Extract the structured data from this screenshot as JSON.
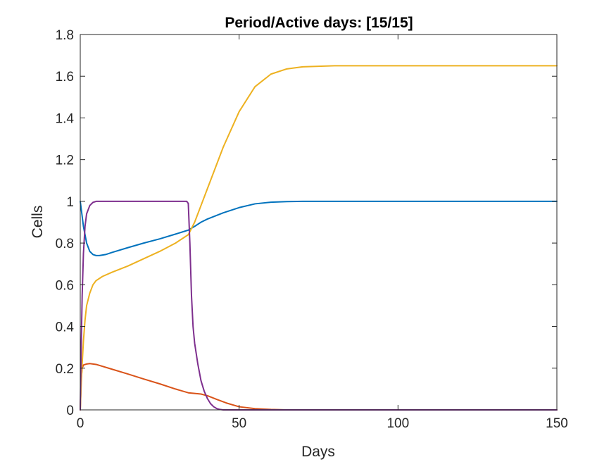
{
  "chart_data": {
    "type": "line",
    "title": "Period/Active days: [15/15]",
    "xlabel": "Days",
    "ylabel": "Cells",
    "xlim": [
      0,
      150
    ],
    "ylim": [
      0,
      1.8
    ],
    "xticks": [
      0,
      50,
      100,
      150
    ],
    "xtick_labels": [
      "0",
      "50",
      "100",
      "150"
    ],
    "yticks": [
      0,
      0.2,
      0.4,
      0.6,
      0.8,
      1,
      1.2,
      1.4,
      1.6,
      1.8
    ],
    "ytick_labels": [
      "0",
      "0.2",
      "0.4",
      "0.6",
      "0.8",
      "1",
      "1.2",
      "1.4",
      "1.6",
      "1.8"
    ],
    "grid": false,
    "legend": false,
    "series": [
      {
        "color": "#0072BD",
        "points": [
          [
            0,
            1.0
          ],
          [
            1,
            0.88
          ],
          [
            2,
            0.8
          ],
          [
            3,
            0.76
          ],
          [
            4,
            0.745
          ],
          [
            5,
            0.74
          ],
          [
            6,
            0.74
          ],
          [
            8,
            0.745
          ],
          [
            10,
            0.755
          ],
          [
            15,
            0.778
          ],
          [
            20,
            0.8
          ],
          [
            25,
            0.82
          ],
          [
            30,
            0.843
          ],
          [
            34,
            0.862
          ],
          [
            36,
            0.88
          ],
          [
            38,
            0.9
          ],
          [
            40,
            0.915
          ],
          [
            45,
            0.945
          ],
          [
            50,
            0.97
          ],
          [
            55,
            0.988
          ],
          [
            60,
            0.996
          ],
          [
            65,
            0.999
          ],
          [
            70,
            1.0
          ],
          [
            100,
            1.0
          ],
          [
            150,
            1.0
          ]
        ]
      },
      {
        "color": "#D95319",
        "points": [
          [
            0,
            0.0
          ],
          [
            0.3,
            0.15
          ],
          [
            0.6,
            0.2
          ],
          [
            1,
            0.215
          ],
          [
            2,
            0.22
          ],
          [
            3,
            0.222
          ],
          [
            5,
            0.218
          ],
          [
            10,
            0.195
          ],
          [
            15,
            0.172
          ],
          [
            20,
            0.148
          ],
          [
            25,
            0.125
          ],
          [
            30,
            0.1
          ],
          [
            34,
            0.082
          ],
          [
            36,
            0.079
          ],
          [
            38,
            0.076
          ],
          [
            40,
            0.068
          ],
          [
            43,
            0.05
          ],
          [
            46,
            0.033
          ],
          [
            50,
            0.015
          ],
          [
            55,
            0.006
          ],
          [
            60,
            0.002
          ],
          [
            65,
            0.0
          ],
          [
            150,
            0.0
          ]
        ]
      },
      {
        "color": "#EDB120",
        "points": [
          [
            0,
            0.0
          ],
          [
            0.3,
            0.12
          ],
          [
            0.6,
            0.22
          ],
          [
            1,
            0.33
          ],
          [
            1.5,
            0.43
          ],
          [
            2,
            0.5
          ],
          [
            3,
            0.56
          ],
          [
            4,
            0.6
          ],
          [
            5,
            0.62
          ],
          [
            7,
            0.64
          ],
          [
            10,
            0.66
          ],
          [
            15,
            0.69
          ],
          [
            20,
            0.725
          ],
          [
            25,
            0.76
          ],
          [
            30,
            0.8
          ],
          [
            34,
            0.84
          ],
          [
            36,
            0.9
          ],
          [
            38,
            0.98
          ],
          [
            40,
            1.06
          ],
          [
            45,
            1.26
          ],
          [
            50,
            1.43
          ],
          [
            55,
            1.55
          ],
          [
            60,
            1.61
          ],
          [
            65,
            1.635
          ],
          [
            70,
            1.645
          ],
          [
            80,
            1.65
          ],
          [
            100,
            1.65
          ],
          [
            150,
            1.65
          ]
        ]
      },
      {
        "color": "#7E2F8E",
        "points": [
          [
            0,
            0.0
          ],
          [
            0.3,
            0.3
          ],
          [
            0.6,
            0.55
          ],
          [
            1,
            0.75
          ],
          [
            1.5,
            0.88
          ],
          [
            2,
            0.94
          ],
          [
            3,
            0.98
          ],
          [
            4,
            0.995
          ],
          [
            5,
            1.0
          ],
          [
            33.5,
            1.0
          ],
          [
            34,
            0.99
          ],
          [
            34.5,
            0.8
          ],
          [
            35,
            0.55
          ],
          [
            35.5,
            0.4
          ],
          [
            36,
            0.32
          ],
          [
            37,
            0.22
          ],
          [
            38,
            0.14
          ],
          [
            39,
            0.09
          ],
          [
            40,
            0.055
          ],
          [
            41,
            0.03
          ],
          [
            42,
            0.015
          ],
          [
            43,
            0.006
          ],
          [
            44,
            0.002
          ],
          [
            45,
            0.0
          ],
          [
            150,
            0.0
          ]
        ]
      }
    ]
  }
}
